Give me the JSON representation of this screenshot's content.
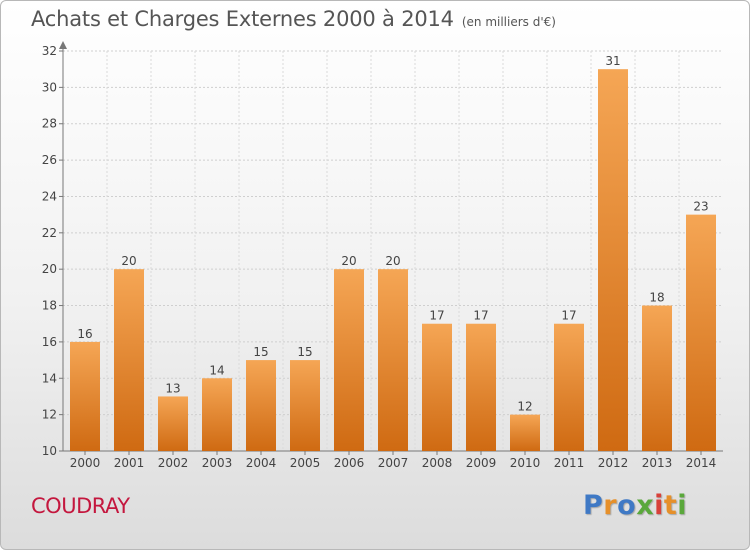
{
  "title": "Achats et Charges Externes 2000 à 2014",
  "subtitle": "(en milliers d'€)",
  "commune": "COUDRAY",
  "logo": {
    "letters": [
      "P",
      "r",
      "o",
      "x",
      "i",
      "t",
      "i"
    ],
    "colors": [
      "#3f79c5",
      "#e6902a",
      "#3f79c5",
      "#5aa83b",
      "#d8403a",
      "#e6902a",
      "#5aa83b"
    ]
  },
  "colors": {
    "bar_light": "#f5a655",
    "bar_dark": "#cf6a12",
    "title": "#555555",
    "commune": "#c4173e"
  },
  "chart_data": {
    "type": "bar",
    "categories": [
      "2000",
      "2001",
      "2002",
      "2003",
      "2004",
      "2005",
      "2006",
      "2007",
      "2008",
      "2009",
      "2010",
      "2011",
      "2012",
      "2013",
      "2014"
    ],
    "values": [
      16,
      20,
      13,
      14,
      15,
      15,
      20,
      20,
      17,
      17,
      12,
      17,
      31,
      18,
      23
    ],
    "title": "Achats et Charges Externes 2000 à 2014",
    "subtitle": "(en milliers d'€)",
    "xlabel": "",
    "ylabel": "",
    "ylim": [
      10,
      32
    ],
    "yticks": [
      10,
      12,
      14,
      16,
      18,
      20,
      22,
      24,
      26,
      28,
      30,
      32
    ],
    "grid": true,
    "data_labels": true
  }
}
